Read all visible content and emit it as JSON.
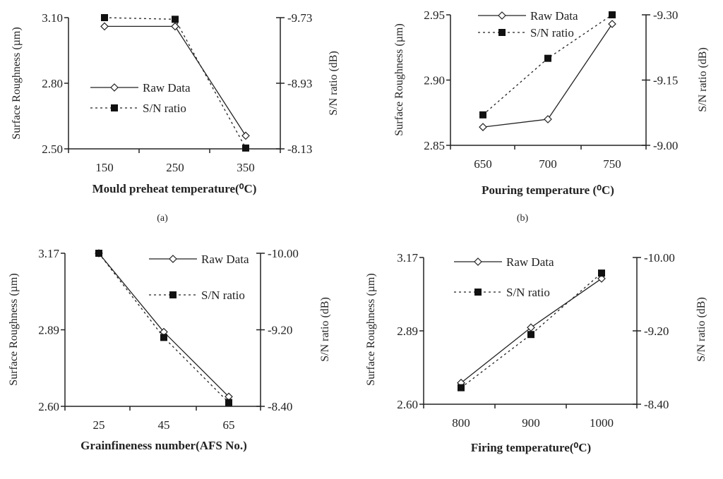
{
  "chart_data": [
    {
      "type": "line",
      "caption": "(a)",
      "xlabel": "Mould preheat temperature(⁰C)",
      "ylabel": "Surface Roughness (µm)",
      "y2label": "S/N ratio (dB)",
      "categories": [
        "150",
        "250",
        "350"
      ],
      "yticks": [
        "3.10",
        "2.80",
        "2.50"
      ],
      "ylim": [
        2.5,
        3.1
      ],
      "y2ticks": [
        "-9.73",
        "-8.93",
        "-8.13"
      ],
      "y2lim": [
        -8.13,
        -9.73
      ],
      "legend": [
        "Raw Data",
        "S/N ratio"
      ],
      "series": [
        {
          "name": "Raw Data",
          "axis": "left",
          "values": [
            3.06,
            3.06,
            2.56
          ]
        },
        {
          "name": "S/N ratio",
          "axis": "right",
          "values": [
            -9.73,
            -9.71,
            -8.14
          ]
        }
      ]
    },
    {
      "type": "line",
      "caption": "(b)",
      "xlabel": "Pouring temperature (⁰C)",
      "ylabel": "Surface Roughness (µm)",
      "y2label": "S/N ratio (dB)",
      "categories": [
        "650",
        "700",
        "750"
      ],
      "yticks": [
        "2.95",
        "2.90",
        "2.85"
      ],
      "ylim": [
        2.85,
        2.95
      ],
      "y2ticks": [
        "-9.30",
        "-9.15",
        "-9.00"
      ],
      "y2lim": [
        -9.0,
        -9.3
      ],
      "legend": [
        "Raw Data",
        "S/N ratio"
      ],
      "series": [
        {
          "name": "Raw Data",
          "axis": "left",
          "values": [
            2.864,
            2.87,
            2.943
          ]
        },
        {
          "name": "S/N ratio",
          "axis": "right",
          "values": [
            -9.07,
            -9.2,
            -9.3
          ]
        }
      ]
    },
    {
      "type": "line",
      "caption": "",
      "xlabel": "Grainfineness number(AFS No.)",
      "ylabel": "Surface Roughness (µm)",
      "y2label": "S/N ratio (dB)",
      "categories": [
        "25",
        "45",
        "65"
      ],
      "yticks": [
        "3.17",
        "2.89",
        "2.60"
      ],
      "ylim": [
        2.6,
        3.17
      ],
      "y2ticks": [
        "-10.00",
        "-9.20",
        "-8.40"
      ],
      "y2lim": [
        -8.4,
        -10.0
      ],
      "legend": [
        "Raw Data",
        "S/N ratio"
      ],
      "series": [
        {
          "name": "Raw Data",
          "axis": "left",
          "values": [
            3.17,
            2.877,
            2.636
          ]
        },
        {
          "name": "S/N ratio",
          "axis": "right",
          "values": [
            -10.0,
            -9.12,
            -8.44
          ]
        }
      ]
    },
    {
      "type": "line",
      "caption": "",
      "xlabel": "Firing temperature(⁰C)",
      "ylabel": "Surface Roughness (µm)",
      "y2label": "S/N ratio (dB)",
      "categories": [
        "800",
        "900",
        "1000"
      ],
      "yticks": [
        "3.17",
        "2.89",
        "2.60"
      ],
      "ylim": [
        2.6,
        3.17
      ],
      "y2ticks": [
        "-10.00",
        "-9.20",
        "-8.40"
      ],
      "y2lim": [
        -8.4,
        -10.0
      ],
      "legend": [
        "Raw Data",
        "S/N ratio"
      ],
      "series": [
        {
          "name": "Raw Data",
          "axis": "left",
          "values": [
            2.683,
            2.898,
            3.088
          ]
        },
        {
          "name": "S/N ratio",
          "axis": "right",
          "values": [
            -8.58,
            -9.16,
            -9.83
          ]
        }
      ]
    }
  ]
}
